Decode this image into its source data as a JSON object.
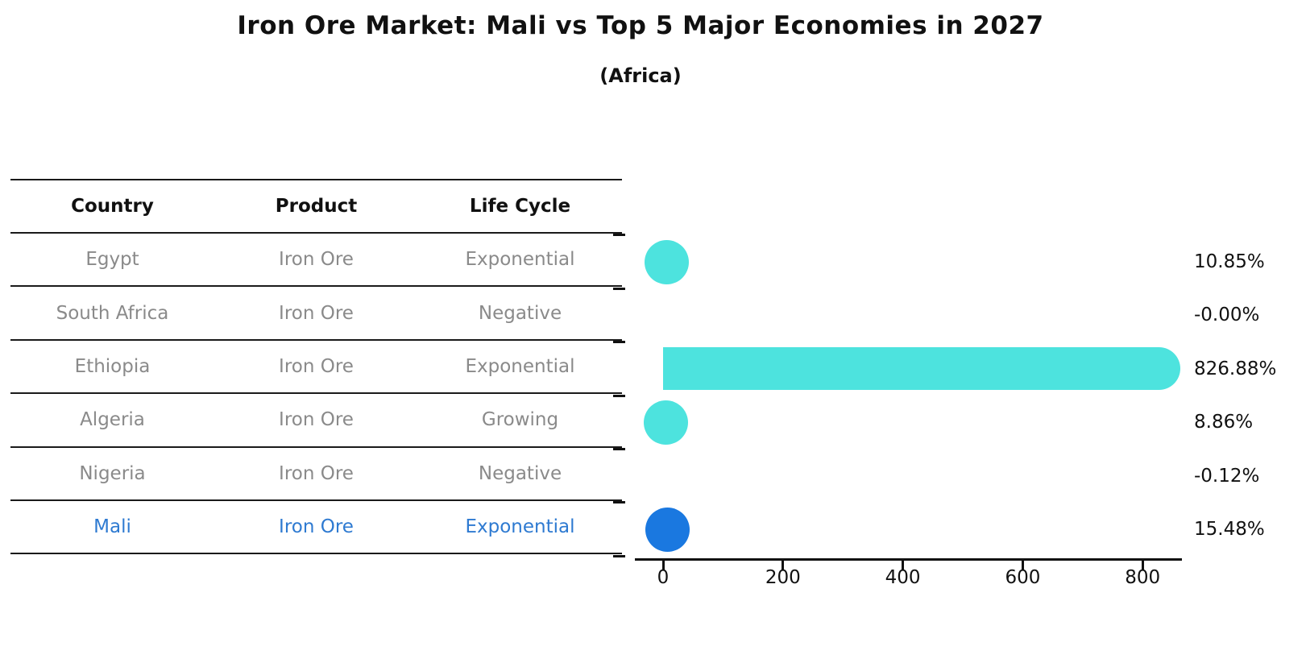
{
  "title": "Iron Ore Market: Mali vs Top 5 Major Economies in 2027",
  "subtitle": "(Africa)",
  "colors": {
    "bar_default": "#4de3de",
    "bar_highlight": "#1a78e0",
    "text_muted": "#8a8a8a",
    "text_highlight": "#2e7ad1",
    "axis": "#111111"
  },
  "table": {
    "headers": [
      "Country",
      "Product",
      "Life Cycle"
    ],
    "rows": [
      {
        "country": "Egypt",
        "product": "Iron Ore",
        "life_cycle": "Exponential"
      },
      {
        "country": "South Africa",
        "product": "Iron Ore",
        "life_cycle": "Negative"
      },
      {
        "country": "Ethiopia",
        "product": "Iron Ore",
        "life_cycle": "Exponential"
      },
      {
        "country": "Algeria",
        "product": "Iron Ore",
        "life_cycle": "Growing"
      },
      {
        "country": "Nigeria",
        "product": "Iron Ore",
        "life_cycle": "Negative"
      },
      {
        "country": "Mali",
        "product": "Iron Ore",
        "life_cycle": "Exponential"
      }
    ]
  },
  "chart_data": {
    "type": "bar",
    "orientation": "horizontal",
    "title": "Iron Ore Market: Mali vs Top 5 Major Economies in 2027",
    "subtitle": "(Africa)",
    "categories": [
      "Egypt",
      "South Africa",
      "Ethiopia",
      "Algeria",
      "Nigeria",
      "Mali"
    ],
    "values": [
      10.85,
      -0.0,
      826.88,
      8.86,
      -0.12,
      15.48
    ],
    "value_labels": [
      "10.85%",
      "-0.00%",
      "826.88%",
      "8.86%",
      "-0.12%",
      "15.48%"
    ],
    "x_ticks": [
      0,
      200,
      400,
      600,
      800
    ],
    "xlim": [
      -47,
      866
    ],
    "ylabel": "",
    "xlabel": "",
    "grid": false,
    "legend": false,
    "highlight_index": 5,
    "bar_color": "#4de3de",
    "highlight_color": "#1a78e0"
  }
}
